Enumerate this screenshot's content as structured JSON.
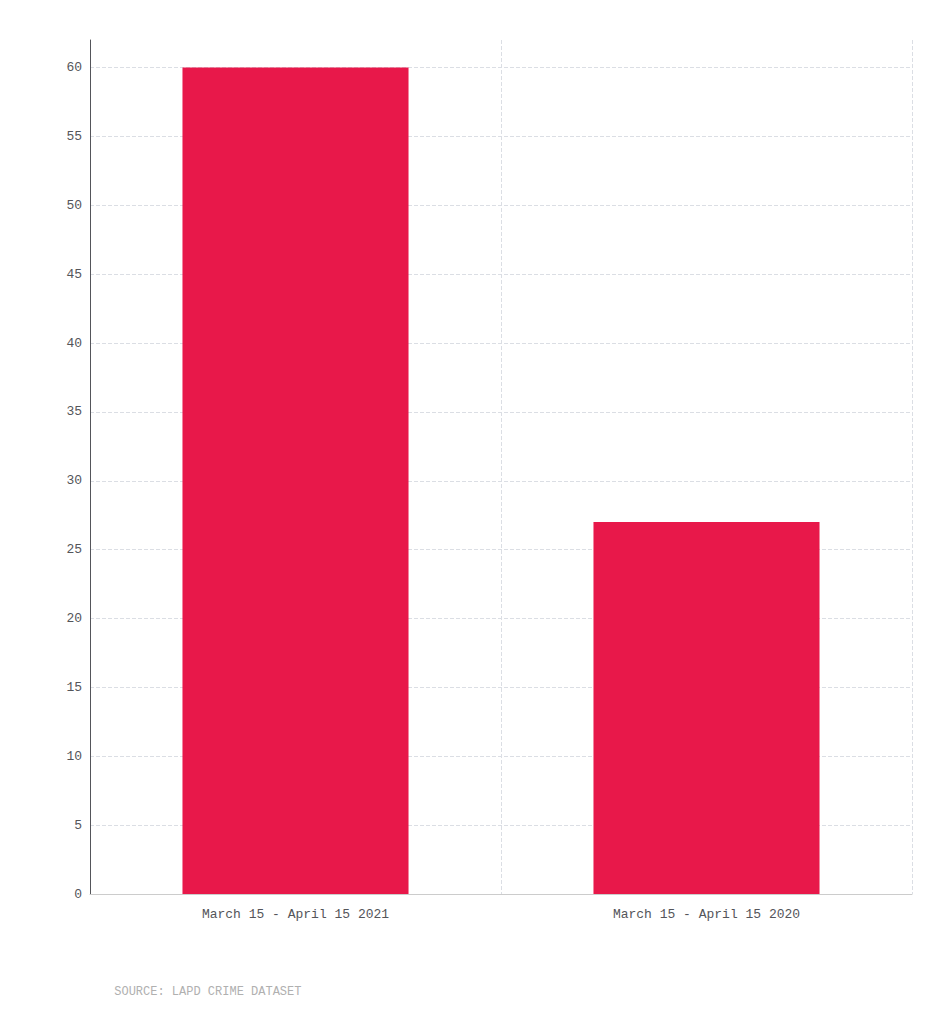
{
  "chart_data": {
    "type": "bar",
    "categories": [
      "March 15 - April 15 2021",
      "March 15 - April 15 2020"
    ],
    "values": [
      60,
      27
    ],
    "color": "#E8184A",
    "ylim": [
      0,
      62
    ],
    "yticks": [
      0,
      5,
      10,
      15,
      20,
      25,
      30,
      35,
      40,
      45,
      50,
      55,
      60
    ],
    "grid": true,
    "annotation": "SOURCE: LAPD CRIME DATASET"
  }
}
